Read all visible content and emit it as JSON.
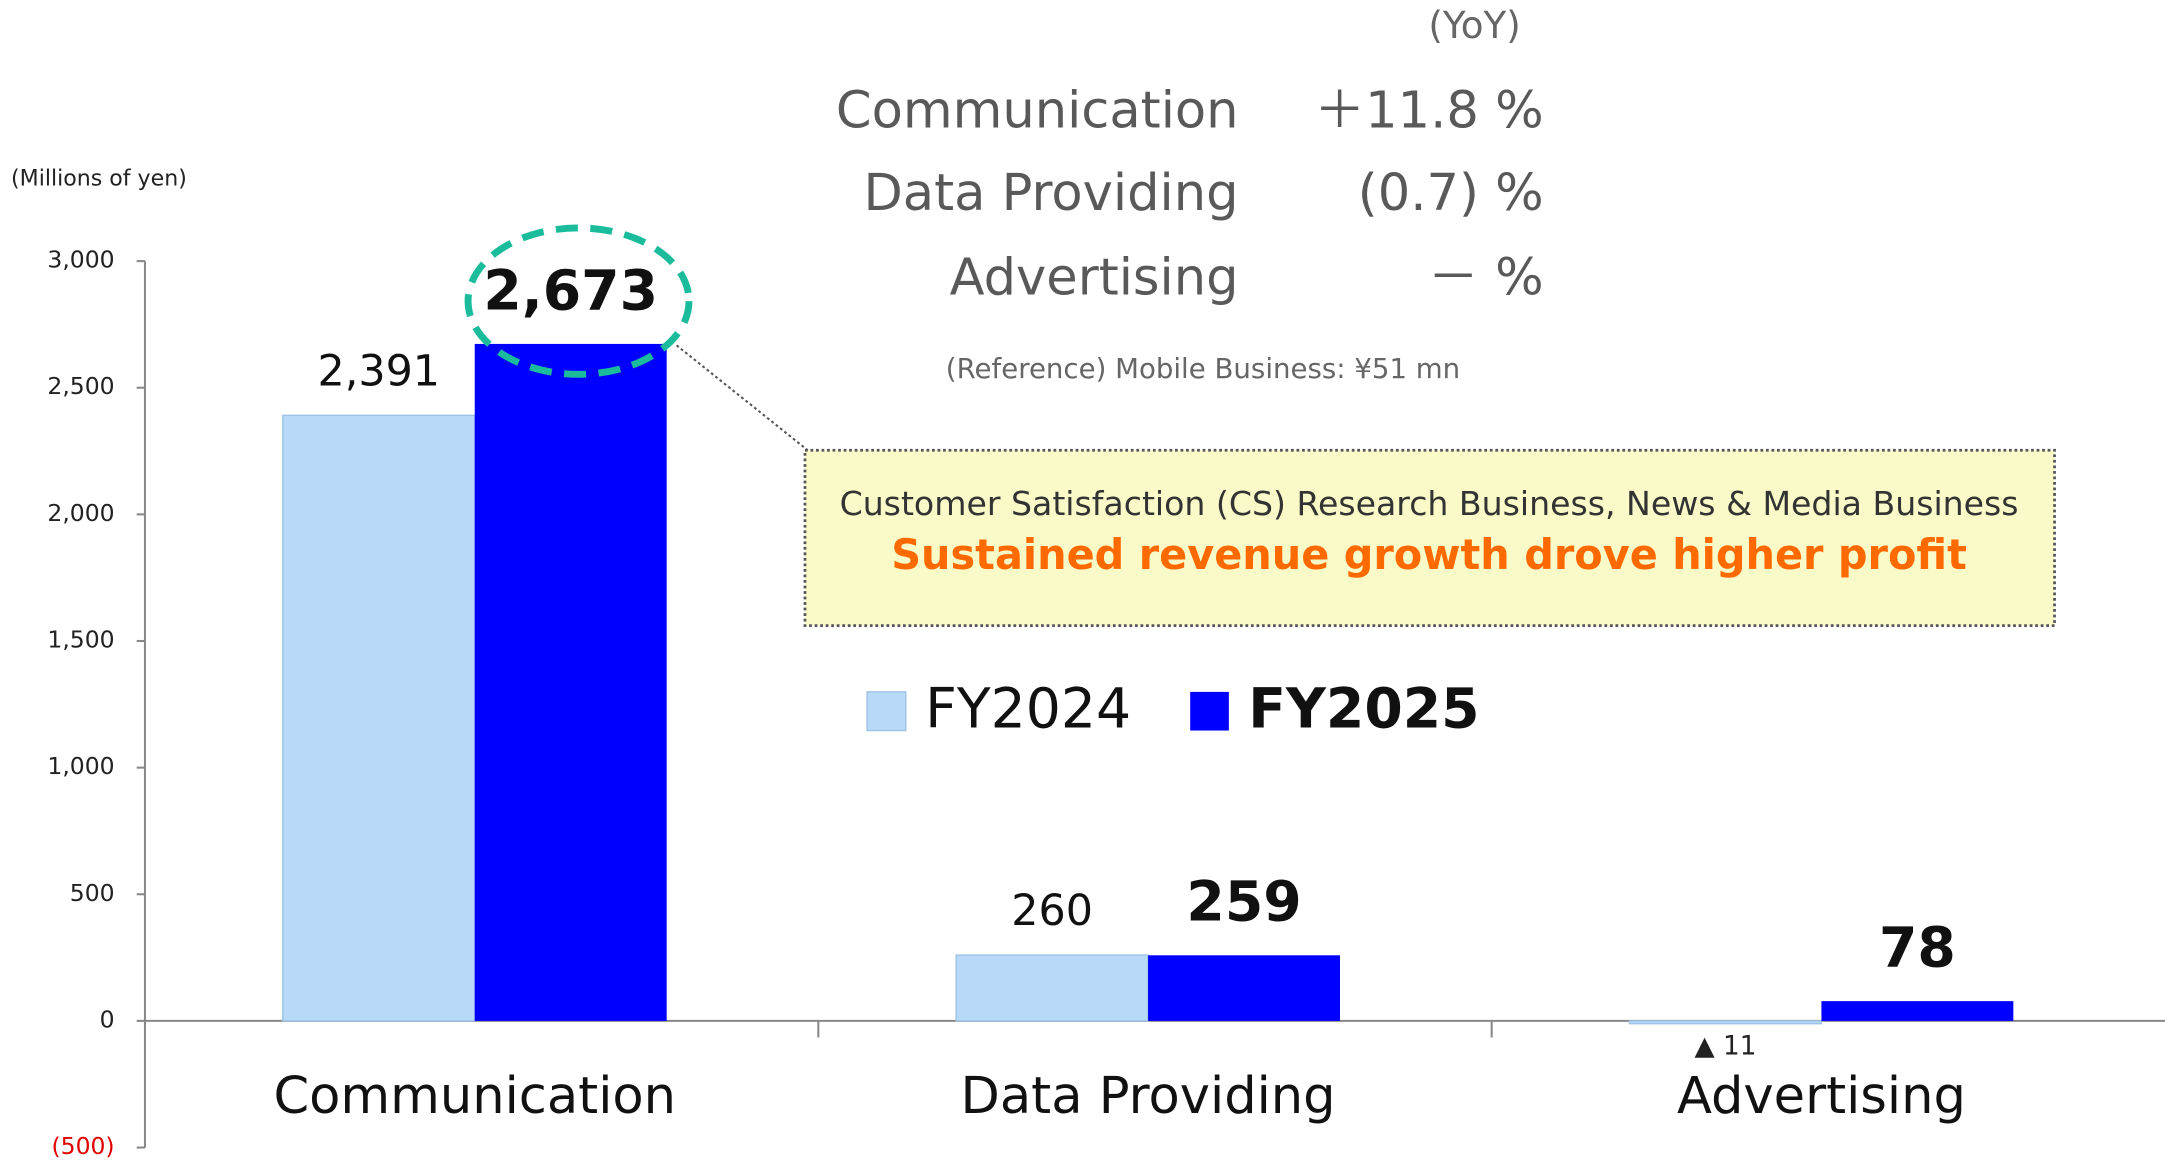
{
  "chart_data": {
    "type": "bar",
    "y_label": "(Millions of yen)",
    "categories": [
      "Communication",
      "Data Providing",
      "Advertising"
    ],
    "series": [
      {
        "name": "FY2024",
        "color": "#b8daf8",
        "values": [
          2391,
          260,
          -11
        ],
        "value_labels": [
          "2,391",
          "260",
          "▲ 11"
        ]
      },
      {
        "name": "FY2025",
        "color": "#0000ff",
        "values": [
          2673,
          259,
          78
        ],
        "value_labels": [
          "2,673",
          "259",
          "78"
        ]
      }
    ],
    "ylim": [
      -500,
      3000
    ],
    "yticks": [
      {
        "value": -500,
        "label": "(500)"
      },
      0,
      500,
      {
        "value": 1000,
        "label": "1,000"
      },
      {
        "value": 1500,
        "label": "1,500"
      },
      {
        "value": 2000,
        "label": "2,000"
      },
      {
        "value": 2500,
        "label": "2,500"
      },
      {
        "value": 3000,
        "label": "3,000"
      }
    ],
    "yoy": {
      "header": "(YoY)",
      "rows": [
        {
          "name": "Communication",
          "value": "＋11.8 %"
        },
        {
          "name": "Data Providing",
          "value": "(0.7) %"
        },
        {
          "name": "Advertising",
          "value": "－ %"
        }
      ],
      "reference": "(Reference)  Mobile Business: ¥51 mn"
    },
    "callout": {
      "line1": "Customer Satisfaction (CS) Research Business, News & Media Business",
      "line2": "Sustained revenue growth drove higher profit"
    }
  }
}
